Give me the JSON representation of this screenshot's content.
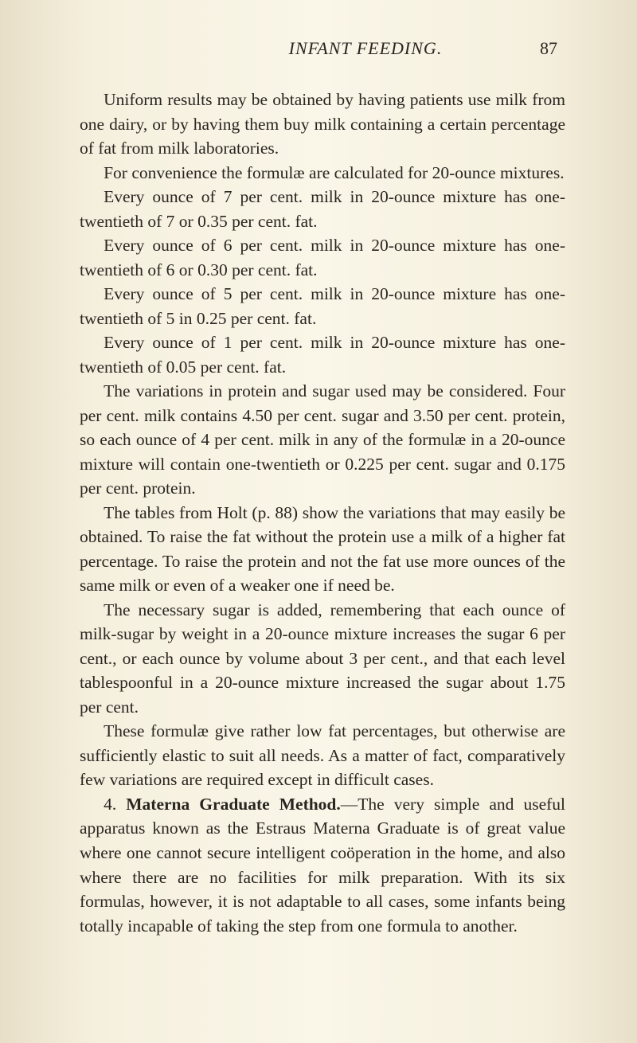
{
  "header": {
    "title": "INFANT FEEDING.",
    "pageNumber": "87"
  },
  "paragraphs": {
    "p1": "Uniform results may be obtained by having patients use milk from one dairy, or by having them buy milk containing a certain percentage of fat from milk laboratories.",
    "p2": "For convenience the formulæ are calculated for 20-ounce mixtures.",
    "p3": "Every ounce of 7 per cent. milk in 20-ounce mixture has one-twentieth of 7 or 0.35 per cent. fat.",
    "p4": "Every ounce of 6 per cent. milk in 20-ounce mixture has one-twentieth of 6 or 0.30 per cent. fat.",
    "p5": "Every ounce of 5 per cent. milk in 20-ounce mixture has one-twentieth of 5 in 0.25 per cent. fat.",
    "p6": "Every ounce of 1 per cent. milk in 20-ounce mixture has one-twentieth of 0.05 per cent. fat.",
    "p7": "The variations in protein and sugar used may be considered. Four per cent. milk contains 4.50 per cent. sugar and 3.50 per cent. protein, so each ounce of 4 per cent. milk in any of the formulæ in a 20-ounce mixture will contain one-twentieth or 0.225 per cent. sugar and 0.175 per cent. protein.",
    "p8": "The tables from Holt (p. 88) show the variations that may easily be obtained. To raise the fat without the protein use a milk of a higher fat percentage. To raise the protein and not the fat use more ounces of the same milk or even of a weaker one if need be.",
    "p9": "The necessary sugar is added, remembering that each ounce of milk-sugar by weight in a 20-ounce mixture increases the sugar 6 per cent., or each ounce by volume about 3 per cent., and that each level tablespoonful in a 20-ounce mixture increased the sugar about 1.75 per cent.",
    "p10": "These formulæ give rather low fat percentages, but otherwise are sufficiently elastic to suit all needs. As a matter of fact, comparatively few variations are required except in difficult cases.",
    "p11_prefix": "4. ",
    "p11_bold": "Materna Graduate Method.",
    "p11_rest": "—The very simple and useful apparatus known as the Estraus Materna Graduate is of great value where one cannot secure intelligent coöperation in the home, and also where there are no facilities for milk preparation. With its six formulas, however, it is not adaptable to all cases, some infants being totally incapable of taking the step from one formula to another."
  }
}
